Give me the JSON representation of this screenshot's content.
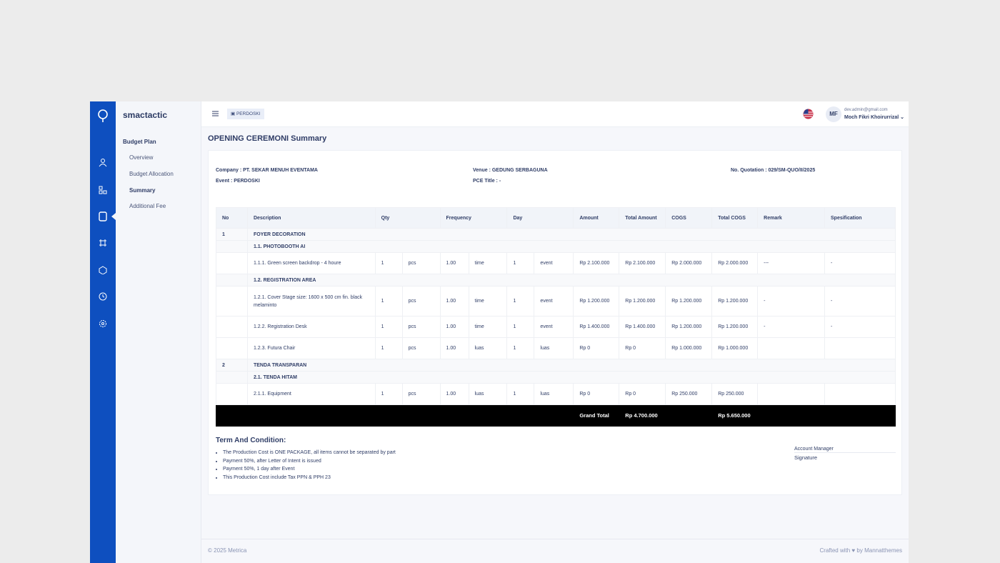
{
  "brand": "smactactic",
  "menu": {
    "section": "Budget Plan",
    "items": [
      "Overview",
      "Budget Allocation",
      "Summary",
      "Additional Fee"
    ]
  },
  "topbar": {
    "breadcrumb": "PERDOSKI",
    "initials": "MF",
    "email": "dev.admin@gmail.com",
    "name": "Moch Fikri Khoirurrizal"
  },
  "page_title": "OPENING CEREMONI Summary",
  "info": {
    "company": "Company : PT. SEKAR MENUH EVENTAMA",
    "event": "Event : PERDOSKI",
    "venue": "Venue : GEDUNG SERBAGUNA",
    "pce_title": "PCE Title : -",
    "quotation": "No. Quotation : 029/SM-QUO/II/2025"
  },
  "table": {
    "headers": [
      "No",
      "Description",
      "Qty",
      "Frequency",
      "Day",
      "Amount",
      "Total Amount",
      "COGS",
      "Total COGS",
      "Remark",
      "Spesification"
    ],
    "rows": [
      {
        "kind": "section",
        "no": "1",
        "label": "FOYER DECORATION"
      },
      {
        "kind": "group",
        "label": "1.1. PHOTOBOOTH AI"
      },
      {
        "kind": "item",
        "cells": [
          "1.1.1. Green screen backdrop - 4 houre",
          "1",
          "pcs",
          "1.00",
          "time",
          "1",
          "event",
          "Rp 2.100.000",
          "Rp 2.100.000",
          "Rp 2.000.000",
          "Rp 2.000.000",
          "---",
          "-"
        ]
      },
      {
        "kind": "group",
        "label": "1.2. REGISTRATION AREA"
      },
      {
        "kind": "item",
        "cells": [
          "1.2.1. Cover Stage size: 1600 x 500 cm fin. black melaminto",
          "1",
          "pcs",
          "1.00",
          "time",
          "1",
          "event",
          "Rp 1.200.000",
          "Rp 1.200.000",
          "Rp 1.200.000",
          "Rp 1.200.000",
          "-",
          "-"
        ]
      },
      {
        "kind": "item",
        "cells": [
          "1.2.2. Registration Desk",
          "1",
          "pcs",
          "1.00",
          "time",
          "1",
          "event",
          "Rp 1.400.000",
          "Rp 1.400.000",
          "Rp 1.200.000",
          "Rp 1.200.000",
          "-",
          "-"
        ]
      },
      {
        "kind": "item",
        "cells": [
          "1.2.3. Futura Chair",
          "1",
          "pcs",
          "1.00",
          "luas",
          "1",
          "luas",
          "Rp 0",
          "Rp 0",
          "Rp 1.000.000",
          "Rp 1.000.000",
          null,
          null
        ]
      },
      {
        "kind": "section",
        "no": "2",
        "label": "TENDA TRANSPARAN"
      },
      {
        "kind": "group",
        "label": "2.1. TENDA HITAM"
      },
      {
        "kind": "item",
        "cells": [
          "2.1.1. Equipment",
          "1",
          "pcs",
          "1.00",
          "luas",
          "1",
          "luas",
          "Rp 0",
          "Rp 0",
          "Rp 250.000",
          "Rp 250.000",
          null,
          null
        ]
      }
    ],
    "grand_total": {
      "label": "Grand Total",
      "total_amount": "Rp 4.700.000",
      "total_cogs": "Rp 5.650.000"
    }
  },
  "terms": {
    "title": "Term And Condition:",
    "items": [
      "The Production Cost is ONE PACKAGE, all items cannot be separated by part",
      "Payment 50%, after Letter of Intent is issued",
      "Payment 50%, 1 day after Event",
      "This Production Cost include Tax PPN & PPH 23"
    ]
  },
  "signature": {
    "role": "Account Manager",
    "label": "Signature"
  },
  "footer": {
    "copyright": "© 2025 Metrica",
    "crafted": "Crafted with",
    "by": "by Mannatthemes"
  }
}
